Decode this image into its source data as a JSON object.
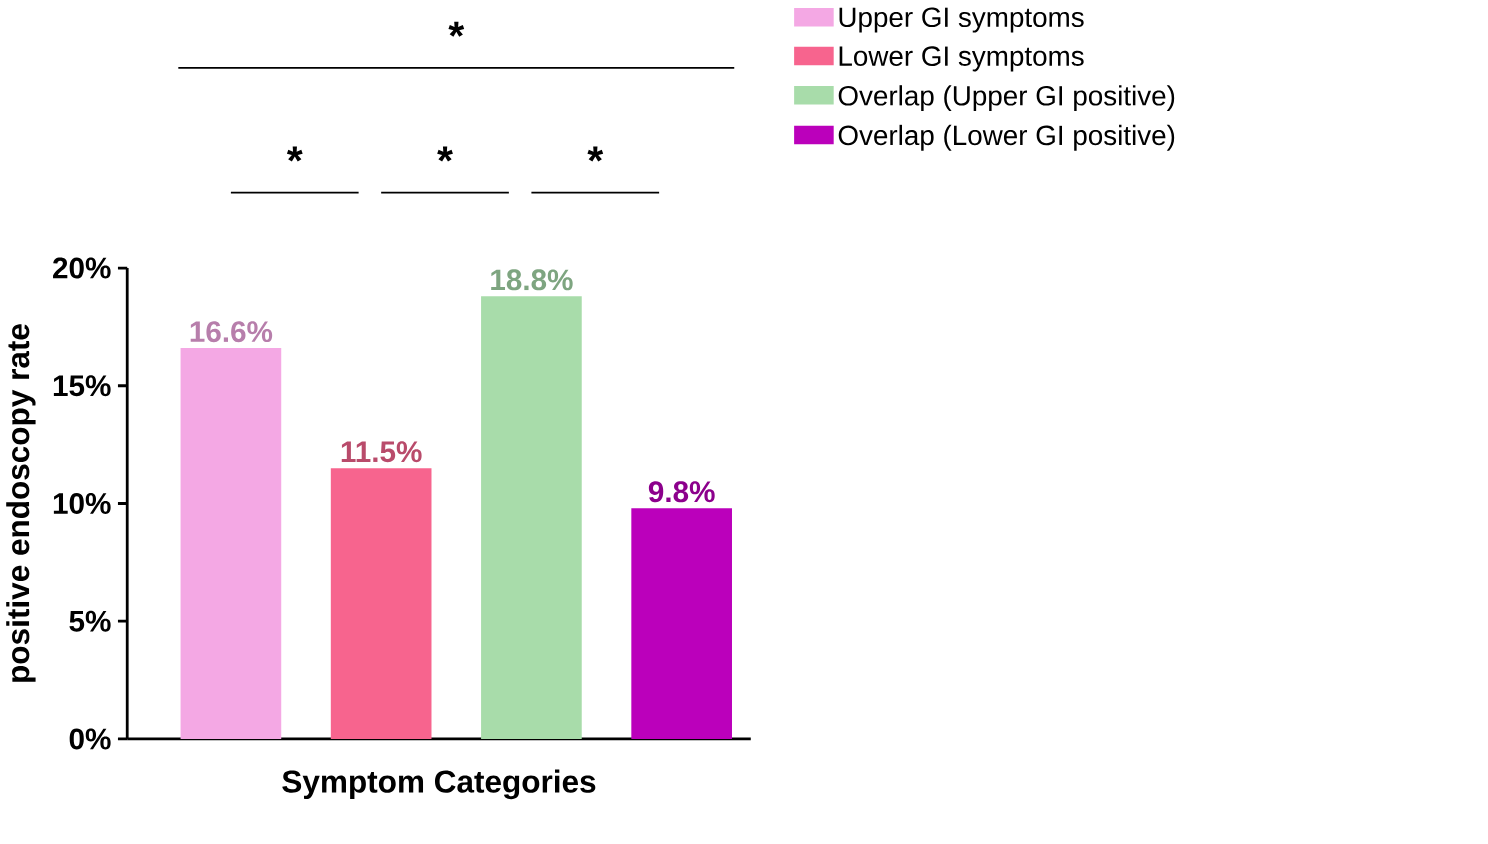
{
  "chart_data": {
    "type": "bar",
    "xlabel": "Symptom Categories",
    "ylabel": "positive endoscopy rate",
    "categories": [
      null,
      null,
      null,
      null
    ],
    "series": [
      {
        "name": "Upper GI symptoms",
        "color": "#f4a8e4",
        "values": [
          16.6,
          null,
          null,
          null
        ],
        "value_labels": [
          "16.6%",
          null,
          null,
          null
        ]
      },
      {
        "name": "Lower GI symptoms",
        "color": "#f7648e",
        "values": [
          null,
          11.5,
          null,
          null
        ],
        "value_labels": [
          null,
          "11.5%",
          null,
          null
        ]
      },
      {
        "name": "Overlap (Upper GI positive)",
        "color": "#a8dcaa",
        "values": [
          null,
          null,
          18.8,
          null
        ],
        "value_labels": [
          null,
          null,
          "18.8%",
          null
        ]
      },
      {
        "name": "Overlap (Lower GI positive)",
        "color": "#bb00bb",
        "values": [
          null,
          null,
          null,
          9.8
        ],
        "value_labels": [
          null,
          null,
          null,
          "9.8%"
        ]
      }
    ],
    "ylim": [
      0,
      20
    ],
    "yticks": [
      {
        "value": 0,
        "label": "0%"
      },
      {
        "value": 5,
        "label": "5%"
      },
      {
        "value": 10,
        "label": "10%"
      },
      {
        "value": 15,
        "label": "15%"
      },
      {
        "value": 20,
        "label": "20%"
      }
    ],
    "annotations": [
      "*",
      "*",
      "*",
      "*"
    ],
    "legend": "top right",
    "grid": false
  }
}
